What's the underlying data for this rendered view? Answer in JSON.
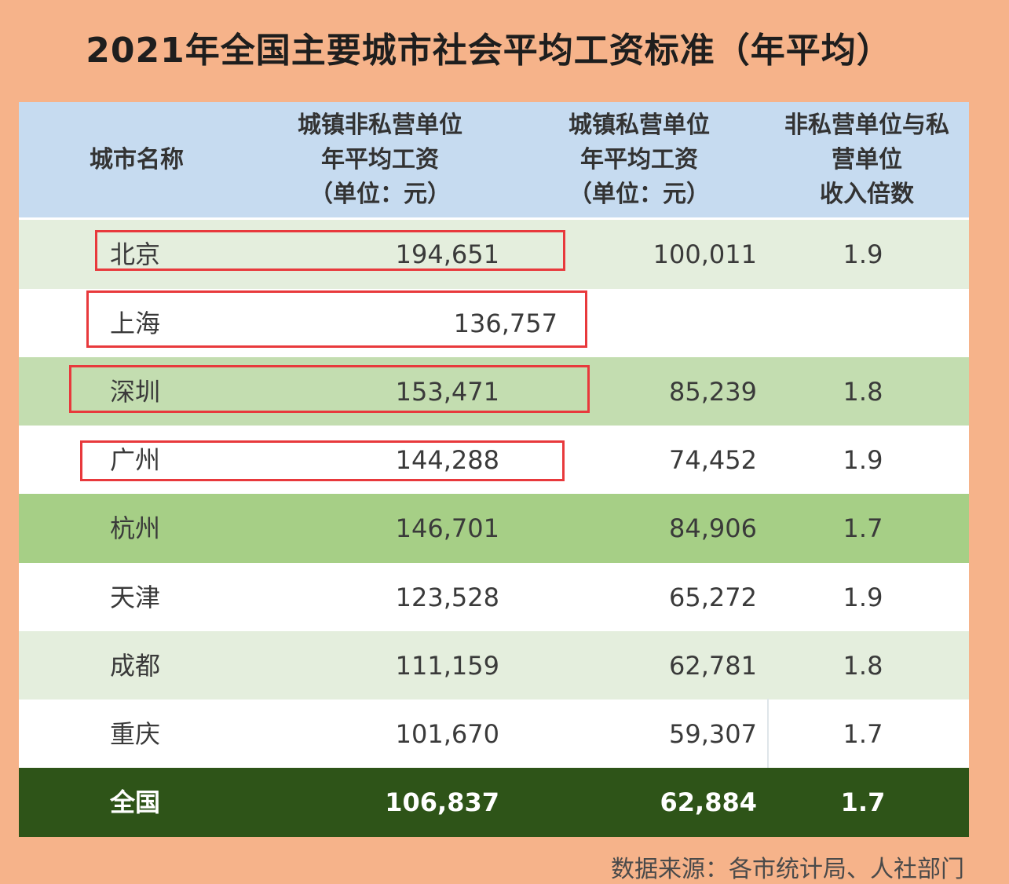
{
  "title": "2021年全国主要城市社会平均工资标准（年平均）",
  "headers": {
    "city": "城市名称",
    "non_private": "城镇非私营单位\n年平均工资\n（单位：元）",
    "private": "城镇私营单位\n年平均工资\n（单位：元）",
    "ratio": "非私营单位与私\n营单位\n收入倍数"
  },
  "rows": [
    {
      "city": "北京",
      "non_private": "194,651",
      "private": "100,011",
      "ratio": "1.9"
    },
    {
      "city": "上海",
      "non_private": "136,757",
      "private": "",
      "ratio": ""
    },
    {
      "city": "深圳",
      "non_private": "153,471",
      "private": "85,239",
      "ratio": "1.8"
    },
    {
      "city": "广州",
      "non_private": "144,288",
      "private": "74,452",
      "ratio": "1.9"
    },
    {
      "city": "杭州",
      "non_private": "146,701",
      "private": "84,906",
      "ratio": "1.7"
    },
    {
      "city": "天津",
      "non_private": "123,528",
      "private": "65,272",
      "ratio": "1.9"
    },
    {
      "city": "成都",
      "non_private": "111,159",
      "private": "62,781",
      "ratio": "1.8"
    },
    {
      "city": "重庆",
      "non_private": "101,670",
      "private": "59,307",
      "ratio": "1.7"
    },
    {
      "city": "全国",
      "non_private": "106,837",
      "private": "62,884",
      "ratio": "1.7"
    }
  ],
  "source": "数据来源：各市统计局、人社部门",
  "colors": {
    "background": "#f6b38a",
    "header": "#c6dbf0",
    "row_light": "#e4eedd",
    "row_mid": "#c3ddb0",
    "row_strong": "#a6cf86",
    "row_total": "#2e5418",
    "highlight_box": "#e8393c"
  }
}
